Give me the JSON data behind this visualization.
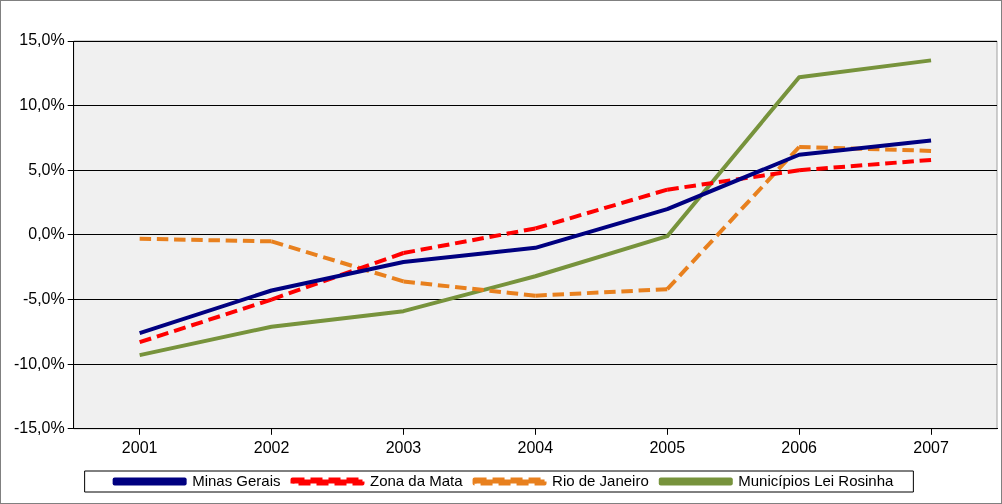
{
  "chart_data": {
    "type": "line",
    "categories": [
      "2001",
      "2002",
      "2003",
      "2004",
      "2005",
      "2006",
      "2007"
    ],
    "series": [
      {
        "name": "Minas Gerais",
        "color": "#000080",
        "line_style": "solid",
        "values": [
          -7.6,
          -4.3,
          -2.1,
          -1.0,
          2.0,
          6.2,
          7.3
        ]
      },
      {
        "name": "Zona da Mata",
        "color": "#ff0000",
        "line_style": "dashed",
        "values": [
          -8.3,
          -5.0,
          -1.4,
          0.5,
          3.5,
          5.0,
          5.8
        ]
      },
      {
        "name": "Rio de Janeiro",
        "color": "#e8801e",
        "line_style": "dashed",
        "values": [
          -0.3,
          -0.5,
          -3.6,
          -4.7,
          -4.2,
          6.8,
          6.5
        ]
      },
      {
        "name": "Municípios Lei Rosinha",
        "color": "#77933c",
        "line_style": "solid",
        "values": [
          -9.3,
          -7.1,
          -5.9,
          -3.2,
          -0.1,
          12.2,
          13.5
        ]
      }
    ],
    "ylim": [
      -15,
      15
    ],
    "yticks": [
      {
        "value": -15,
        "label": "-15,0%"
      },
      {
        "value": -10,
        "label": "-10,0%"
      },
      {
        "value": -5,
        "label": "-5,0%"
      },
      {
        "value": 0,
        "label": "0,0%"
      },
      {
        "value": 5,
        "label": "5,0%"
      },
      {
        "value": 10,
        "label": "10,0%"
      },
      {
        "value": 15,
        "label": "15,0%"
      }
    ],
    "grid": "y",
    "legend": "bottom",
    "marker": "none"
  }
}
